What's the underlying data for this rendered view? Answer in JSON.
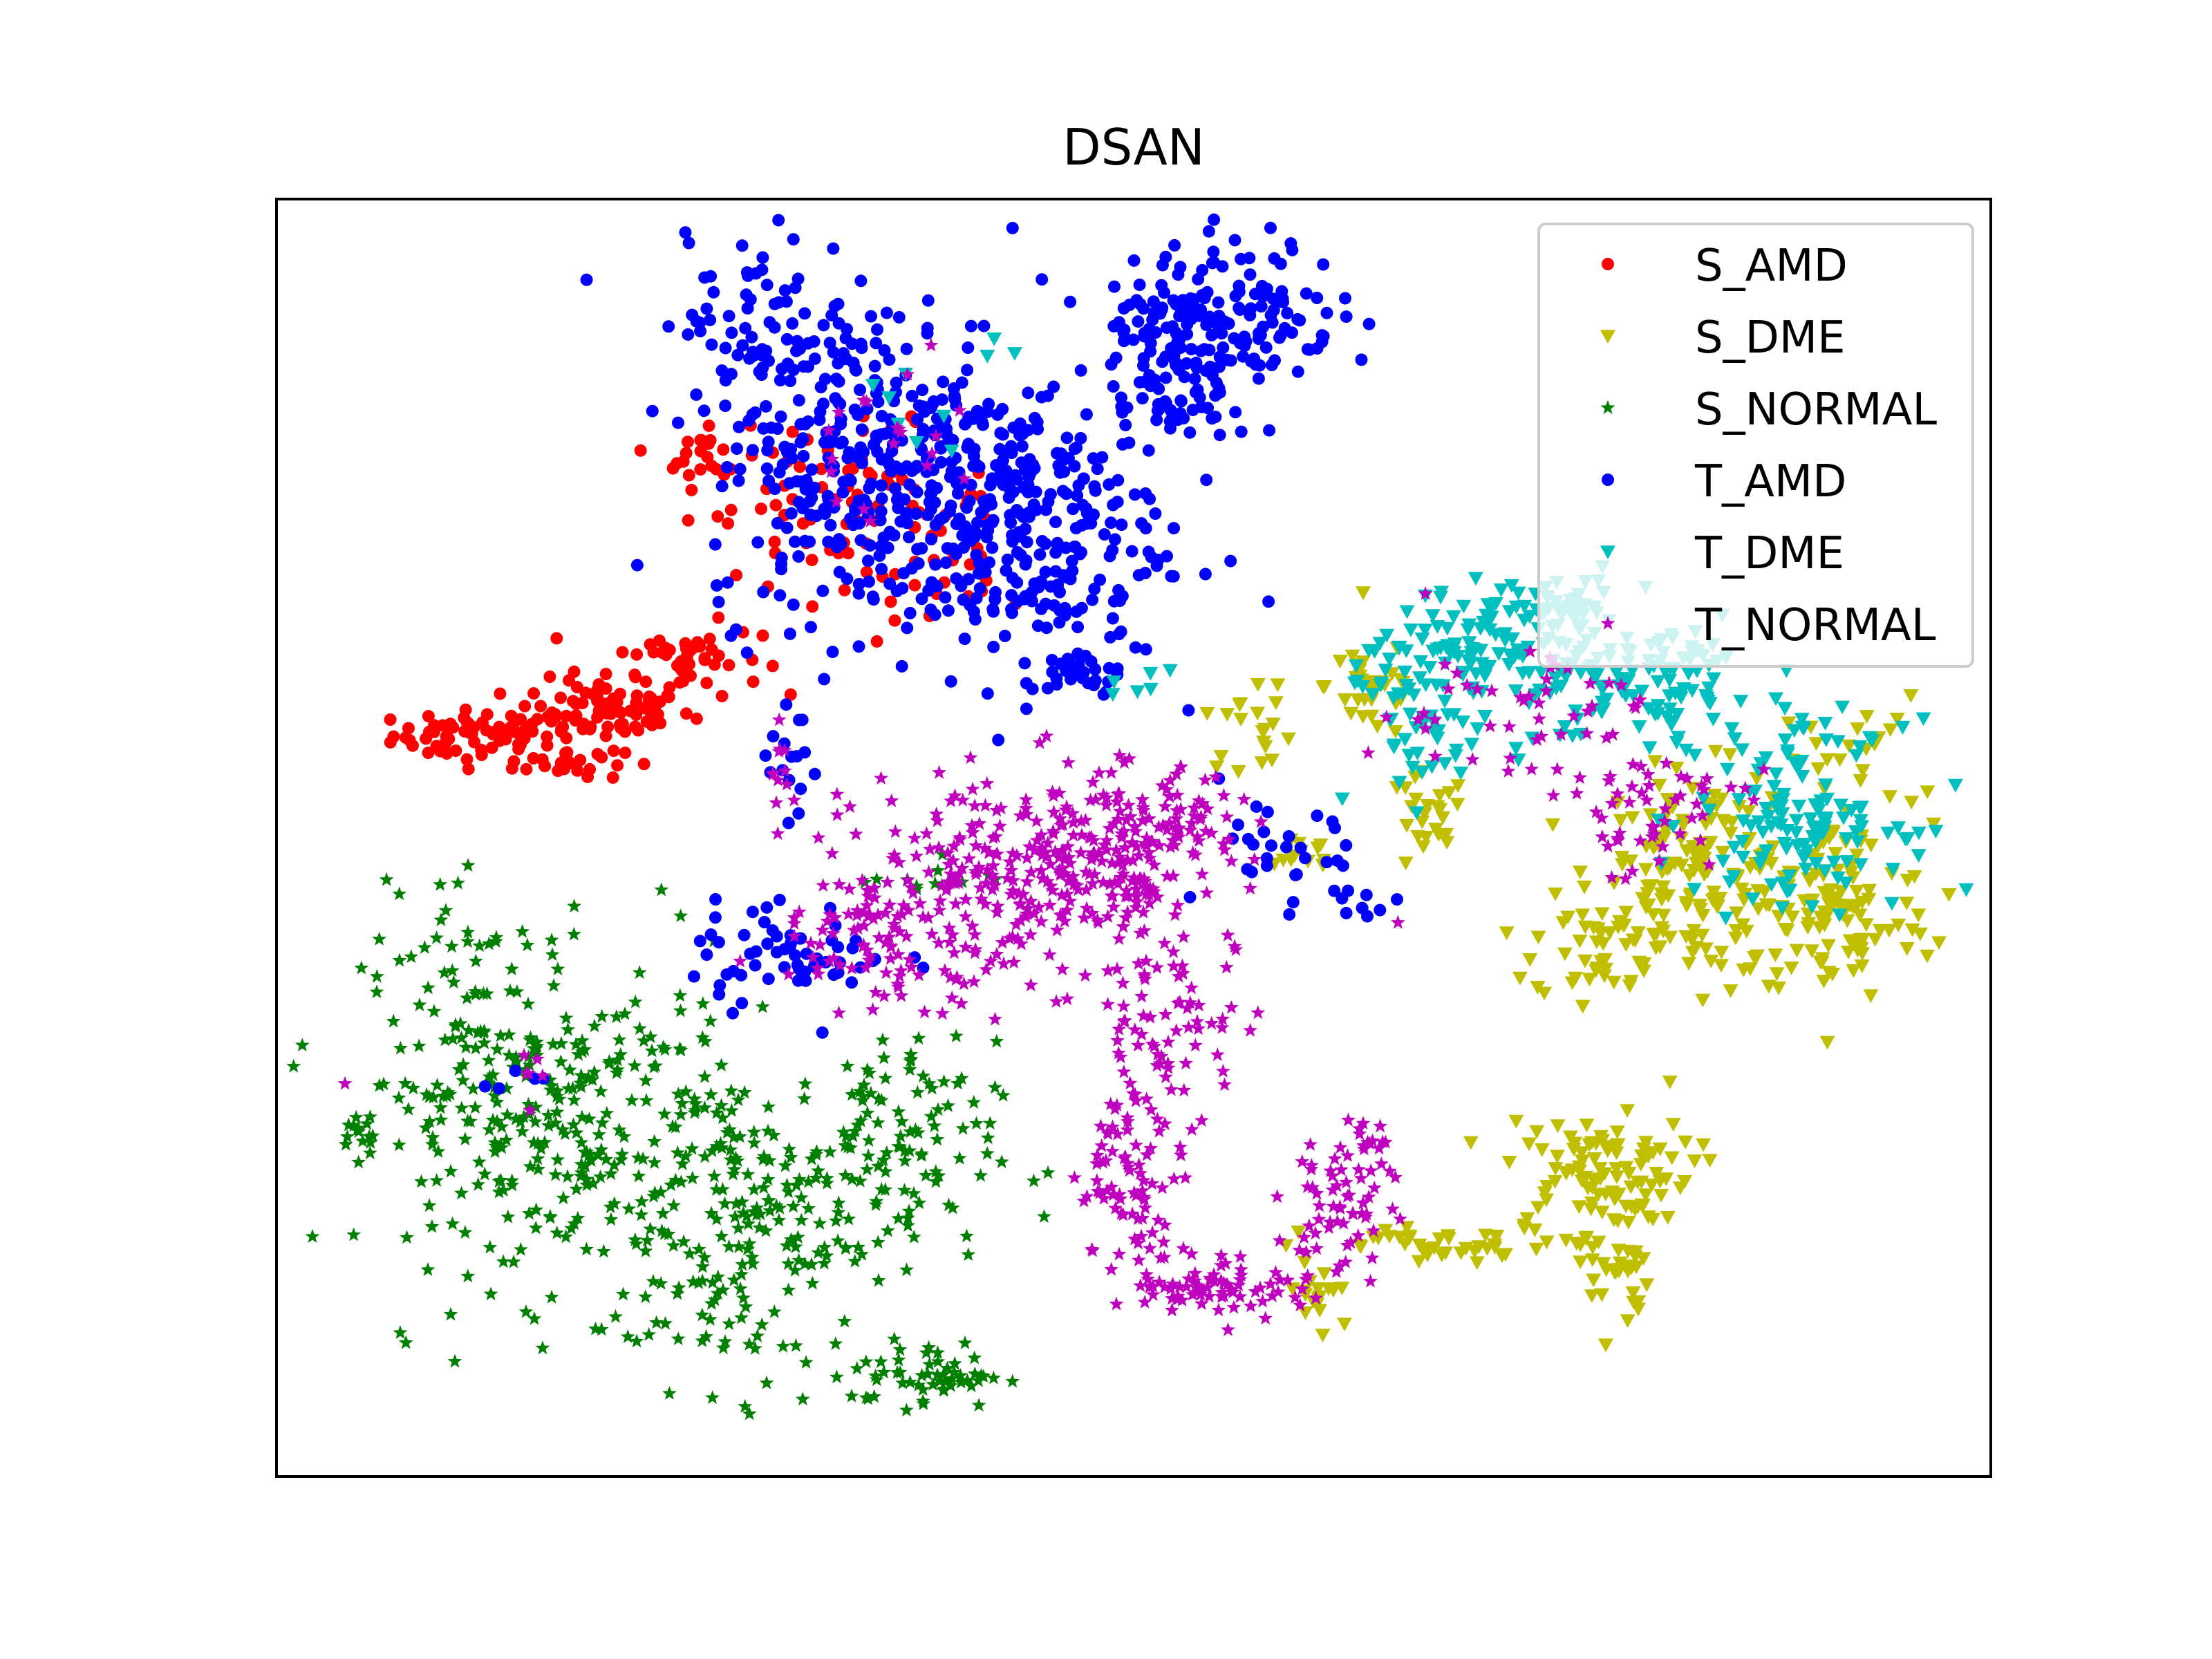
{
  "chart_data": {
    "type": "scatter",
    "title": "DSAN",
    "xlabel": "",
    "ylabel": "",
    "xlim": [
      0,
      100
    ],
    "ylim": [
      0,
      100
    ],
    "axis_ticks": false,
    "grid": false,
    "legend_position": "top-right",
    "series": [
      {
        "name": "S_AMD",
        "marker": "circle",
        "color": "#ff0000",
        "clusters": [
          {
            "x": 12,
            "y": 58,
            "sx": 2.6,
            "sy": 1.0,
            "n": 70
          },
          {
            "x": 19,
            "y": 60,
            "sx": 2.6,
            "sy": 1.2,
            "n": 80
          },
          {
            "x": 24,
            "y": 64,
            "sx": 2.2,
            "sy": 1.4,
            "n": 50
          },
          {
            "x": 17,
            "y": 56,
            "sx": 1.6,
            "sy": 0.8,
            "n": 25
          },
          {
            "x": 25,
            "y": 80,
            "sx": 1.3,
            "sy": 1.3,
            "n": 20
          },
          {
            "x": 33,
            "y": 76,
            "sx": 4.5,
            "sy": 3.0,
            "n": 80
          },
          {
            "x": 39,
            "y": 70,
            "sx": 2.0,
            "sy": 2.5,
            "n": 20
          }
        ]
      },
      {
        "name": "S_DME",
        "marker": "triangle_down",
        "color": "#bfbf00",
        "clusters": [
          {
            "x": 64,
            "y": 62,
            "sx": 1.4,
            "sy": 2.2,
            "n": 35
          },
          {
            "x": 67,
            "y": 51,
            "sx": 1.2,
            "sy": 2.0,
            "n": 25
          },
          {
            "x": 83,
            "y": 47,
            "sx": 3.0,
            "sy": 4.0,
            "n": 160
          },
          {
            "x": 91,
            "y": 44,
            "sx": 2.8,
            "sy": 3.5,
            "n": 110
          },
          {
            "x": 77,
            "y": 42,
            "sx": 1.8,
            "sy": 2.5,
            "n": 40
          },
          {
            "x": 77,
            "y": 24,
            "sx": 2.8,
            "sy": 2.0,
            "n": 90
          },
          {
            "x": 78,
            "y": 17,
            "sx": 1.0,
            "sy": 3.0,
            "n": 40
          },
          {
            "x": 69,
            "y": 18,
            "sx": 4.5,
            "sy": 0.8,
            "n": 45
          },
          {
            "x": 61,
            "y": 14,
            "sx": 1.2,
            "sy": 1.8,
            "n": 18
          },
          {
            "x": 60,
            "y": 49,
            "sx": 0.8,
            "sy": 0.8,
            "n": 12
          },
          {
            "x": 92,
            "y": 56,
            "sx": 2.0,
            "sy": 2.5,
            "n": 25
          },
          {
            "x": 57,
            "y": 59,
            "sx": 1.4,
            "sy": 1.8,
            "n": 20
          }
        ]
      },
      {
        "name": "S_NORMAL",
        "marker": "star",
        "color": "#007f00",
        "clusters": [
          {
            "x": 12,
            "y": 31,
            "sx": 3.5,
            "sy": 7.0,
            "n": 170
          },
          {
            "x": 19,
            "y": 27,
            "sx": 4.0,
            "sy": 6.5,
            "n": 160
          },
          {
            "x": 27,
            "y": 20,
            "sx": 4.5,
            "sy": 6.5,
            "n": 190
          },
          {
            "x": 35,
            "y": 25,
            "sx": 3.5,
            "sy": 4.5,
            "n": 110
          },
          {
            "x": 38,
            "y": 8,
            "sx": 2.2,
            "sy": 1.3,
            "n": 55
          },
          {
            "x": 5,
            "y": 27,
            "sx": 0.6,
            "sy": 1.0,
            "n": 15
          },
          {
            "x": 38,
            "y": 47,
            "sx": 2.0,
            "sy": 0.8,
            "n": 12
          }
        ]
      },
      {
        "name": "T_AMD",
        "marker": "circle",
        "color": "#0000ff",
        "clusters": [
          {
            "x": 35,
            "y": 80,
            "sx": 5.0,
            "sy": 6.5,
            "n": 350
          },
          {
            "x": 43,
            "y": 74,
            "sx": 4.5,
            "sy": 5.5,
            "n": 280
          },
          {
            "x": 28,
            "y": 90,
            "sx": 2.0,
            "sy": 3.5,
            "n": 60
          },
          {
            "x": 52,
            "y": 84,
            "sx": 1.8,
            "sy": 1.5,
            "n": 40
          },
          {
            "x": 56,
            "y": 91,
            "sx": 3.0,
            "sy": 3.0,
            "n": 150
          },
          {
            "x": 51,
            "y": 90,
            "sx": 1.6,
            "sy": 2.2,
            "n": 50
          },
          {
            "x": 47,
            "y": 63,
            "sx": 1.4,
            "sy": 1.2,
            "n": 25
          },
          {
            "x": 30,
            "y": 41,
            "sx": 3.0,
            "sy": 2.0,
            "n": 60
          },
          {
            "x": 30,
            "y": 55,
            "sx": 0.8,
            "sy": 2.2,
            "n": 15
          },
          {
            "x": 59,
            "y": 48,
            "sx": 2.0,
            "sy": 3.0,
            "n": 30
          },
          {
            "x": 63,
            "y": 45,
            "sx": 1.0,
            "sy": 0.8,
            "n": 8
          },
          {
            "x": 14,
            "y": 31,
            "sx": 1.0,
            "sy": 1.0,
            "n": 5
          }
        ]
      },
      {
        "name": "T_DME",
        "marker": "triangle_down",
        "color": "#00bfbf",
        "clusters": [
          {
            "x": 69,
            "y": 64,
            "sx": 3.0,
            "sy": 2.0,
            "n": 90
          },
          {
            "x": 79,
            "y": 62,
            "sx": 4.0,
            "sy": 2.8,
            "n": 130
          },
          {
            "x": 89,
            "y": 52,
            "sx": 3.0,
            "sy": 3.5,
            "n": 130
          },
          {
            "x": 74,
            "y": 68,
            "sx": 2.5,
            "sy": 1.2,
            "n": 50
          },
          {
            "x": 67,
            "y": 58,
            "sx": 2.0,
            "sy": 2.5,
            "n": 35
          },
          {
            "x": 40,
            "y": 83,
            "sx": 4.0,
            "sy": 4.0,
            "n": 10
          },
          {
            "x": 50,
            "y": 62,
            "sx": 1.2,
            "sy": 0.8,
            "n": 6
          }
        ]
      },
      {
        "name": "T_NORMAL",
        "marker": "star",
        "color": "#bf00bf",
        "clusters": [
          {
            "x": 44,
            "y": 47,
            "sx": 5.0,
            "sy": 4.0,
            "n": 280
          },
          {
            "x": 51,
            "y": 50,
            "sx": 2.5,
            "sy": 2.5,
            "n": 110
          },
          {
            "x": 36,
            "y": 42,
            "sx": 3.5,
            "sy": 2.5,
            "n": 90
          },
          {
            "x": 52,
            "y": 35,
            "sx": 2.2,
            "sy": 3.5,
            "n": 70
          },
          {
            "x": 50,
            "y": 23,
            "sx": 1.6,
            "sy": 3.5,
            "n": 80
          },
          {
            "x": 55,
            "y": 15,
            "sx": 2.5,
            "sy": 1.2,
            "n": 70
          },
          {
            "x": 62,
            "y": 21,
            "sx": 1.5,
            "sy": 3.0,
            "n": 60
          },
          {
            "x": 64,
            "y": 26,
            "sx": 0.8,
            "sy": 1.2,
            "n": 15
          },
          {
            "x": 72,
            "y": 60,
            "sx": 4.0,
            "sy": 3.0,
            "n": 50
          },
          {
            "x": 80,
            "y": 52,
            "sx": 2.8,
            "sy": 2.5,
            "n": 50
          },
          {
            "x": 36,
            "y": 81,
            "sx": 3.0,
            "sy": 3.5,
            "n": 20
          },
          {
            "x": 29,
            "y": 55,
            "sx": 0.6,
            "sy": 2.0,
            "n": 12
          },
          {
            "x": 14,
            "y": 31,
            "sx": 1.0,
            "sy": 1.0,
            "n": 6
          },
          {
            "x": 4,
            "y": 31,
            "sx": 0.3,
            "sy": 0.3,
            "n": 1
          }
        ]
      }
    ]
  }
}
